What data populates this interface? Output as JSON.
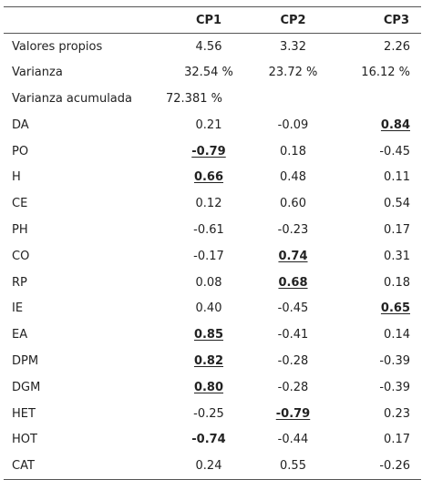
{
  "table": {
    "headers": [
      "",
      "CP1",
      "CP2",
      "CP3"
    ],
    "rows": [
      {
        "label": "Valores propios",
        "cells": [
          {
            "v": "4.56"
          },
          {
            "v": "3.32"
          },
          {
            "v": "2.26"
          }
        ]
      },
      {
        "label": "Varianza",
        "cells": [
          {
            "v": "32.54 %"
          },
          {
            "v": "23.72 %"
          },
          {
            "v": "16.12 %"
          }
        ]
      },
      {
        "label": "Varianza acumulada",
        "cells": [
          {
            "v": "72.381 %"
          },
          {
            "v": ""
          },
          {
            "v": ""
          }
        ]
      },
      {
        "label": "DA",
        "cells": [
          {
            "v": "0.21"
          },
          {
            "v": "-0.09"
          },
          {
            "v": "0.84",
            "bold": true,
            "underline": true
          }
        ]
      },
      {
        "label": "PO",
        "cells": [
          {
            "v": "-0.79",
            "bold": true,
            "underline": true
          },
          {
            "v": "0.18"
          },
          {
            "v": "-0.45"
          }
        ]
      },
      {
        "label": "H",
        "cells": [
          {
            "v": "0.66",
            "bold": true,
            "underline": true
          },
          {
            "v": "0.48"
          },
          {
            "v": "0.11"
          }
        ]
      },
      {
        "label": "CE",
        "cells": [
          {
            "v": "0.12"
          },
          {
            "v": "0.60"
          },
          {
            "v": "0.54"
          }
        ]
      },
      {
        "label": "PH",
        "cells": [
          {
            "v": "-0.61"
          },
          {
            "v": "-0.23"
          },
          {
            "v": "0.17"
          }
        ]
      },
      {
        "label": "CO",
        "cells": [
          {
            "v": "-0.17"
          },
          {
            "v": "0.74",
            "bold": true,
            "underline": true
          },
          {
            "v": "0.31"
          }
        ]
      },
      {
        "label": "RP",
        "cells": [
          {
            "v": "0.08"
          },
          {
            "v": "0.68",
            "bold": true,
            "underline": true
          },
          {
            "v": "0.18"
          }
        ]
      },
      {
        "label": "IE",
        "cells": [
          {
            "v": "0.40"
          },
          {
            "v": "-0.45"
          },
          {
            "v": "0.65",
            "bold": true,
            "underline": true
          }
        ]
      },
      {
        "label": "EA",
        "cells": [
          {
            "v": "0.85",
            "bold": true,
            "underline": true
          },
          {
            "v": "-0.41"
          },
          {
            "v": "0.14"
          }
        ]
      },
      {
        "label": "DPM",
        "cells": [
          {
            "v": "0.82",
            "bold": true,
            "underline": true
          },
          {
            "v": "-0.28"
          },
          {
            "v": "-0.39"
          }
        ]
      },
      {
        "label": "DGM",
        "cells": [
          {
            "v": "0.80",
            "bold": true,
            "underline": true
          },
          {
            "v": "-0.28"
          },
          {
            "v": "-0.39"
          }
        ]
      },
      {
        "label": "HET",
        "cells": [
          {
            "v": "-0.25"
          },
          {
            "v": "-0.79",
            "bold": true,
            "underline": true
          },
          {
            "v": "0.23"
          }
        ]
      },
      {
        "label": "HOT",
        "cells": [
          {
            "v": "-0.74",
            "bold": true
          },
          {
            "v": "-0.44"
          },
          {
            "v": "0.17"
          }
        ]
      },
      {
        "label": "CAT",
        "cells": [
          {
            "v": "0.24"
          },
          {
            "v": "0.55"
          },
          {
            "v": "-0.26"
          }
        ]
      }
    ]
  }
}
